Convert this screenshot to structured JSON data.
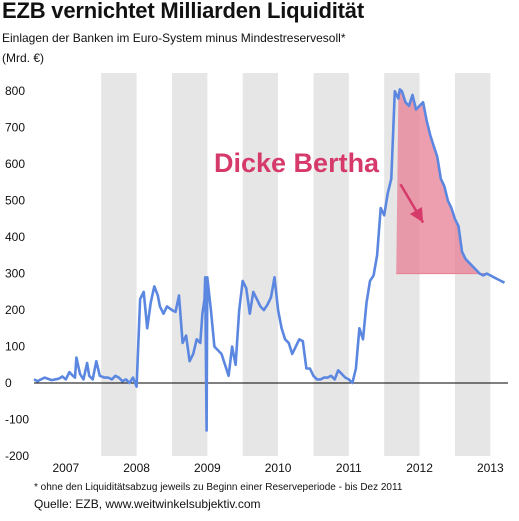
{
  "chart_data": {
    "type": "area",
    "title": "EZB vernichtet Milliarden Liquidität",
    "subtitle": "Einlagen der Banken im Euro-System minus Mindestreservesoll*",
    "unit": "(Mrd. €)",
    "ylim": [
      -200,
      850
    ],
    "xlim": [
      2006.55,
      2013.25
    ],
    "yticks": [
      -200,
      -100,
      0,
      100,
      200,
      300,
      400,
      500,
      600,
      700,
      800
    ],
    "ytick_labels": [
      "-200",
      "-100",
      "0",
      "100",
      "200",
      "300",
      "400",
      "500",
      "600",
      "700",
      "800"
    ],
    "year_labels": [
      "2007",
      "2008",
      "2009",
      "2010",
      "2011",
      "2012",
      "2013"
    ],
    "year_positions": [
      2007.0,
      2008.0,
      2009.0,
      2010.0,
      2011.0,
      2012.0,
      2013.0
    ],
    "shaded_bands": [
      [
        2007.5,
        2008.0
      ],
      [
        2008.5,
        2009.0
      ],
      [
        2009.5,
        2010.0
      ],
      [
        2010.5,
        2011.0
      ],
      [
        2011.5,
        2012.0
      ],
      [
        2012.5,
        2013.0
      ]
    ],
    "grid": false,
    "legend": "none",
    "colors": {
      "line": "#5b87e0",
      "area": "#e87f94",
      "band": "#e6e6e6",
      "annotation": "#d63a6a",
      "zero_line": "#000000"
    },
    "annotation": {
      "text": "Dicke Bertha",
      "arrow_from": [
        2011.73,
        545
      ],
      "arrow_to": [
        2012.05,
        440
      ]
    },
    "highlight": {
      "x_start": 2011.67,
      "x_end": 2012.92,
      "baseline": 300
    },
    "series": [
      {
        "x": [
          2006.55,
          2006.6,
          2006.7,
          2006.8,
          2006.9,
          2006.95,
          2007.0,
          2007.05,
          2007.1,
          2007.13,
          2007.15,
          2007.2,
          2007.25,
          2007.3,
          2007.33,
          2007.38,
          2007.43,
          2007.48,
          2007.55,
          2007.6,
          2007.65,
          2007.7,
          2007.75,
          2007.8,
          2007.85,
          2007.9,
          2007.95,
          2008.0,
          2008.05,
          2008.1,
          2008.15,
          2008.2,
          2008.25,
          2008.3,
          2008.33,
          2008.38,
          2008.43,
          2008.5,
          2008.55,
          2008.6,
          2008.65,
          2008.7,
          2008.75,
          2008.8,
          2008.85,
          2008.9,
          2008.93,
          2008.96,
          2008.97,
          2008.99,
          2009.0,
          2009.05,
          2009.1,
          2009.2,
          2009.3,
          2009.35,
          2009.4,
          2009.45,
          2009.5,
          2009.55,
          2009.6,
          2009.65,
          2009.7,
          2009.75,
          2009.8,
          2009.85,
          2009.9,
          2009.95,
          2010.0,
          2010.05,
          2010.1,
          2010.15,
          2010.2,
          2010.25,
          2010.3,
          2010.35,
          2010.4,
          2010.45,
          2010.5,
          2010.55,
          2010.6,
          2010.65,
          2010.7,
          2010.75,
          2010.8,
          2010.85,
          2010.9,
          2010.95,
          2011.0,
          2011.05,
          2011.1,
          2011.15,
          2011.2,
          2011.25,
          2011.3,
          2011.35,
          2011.4,
          2011.45,
          2011.5,
          2011.55,
          2011.6,
          2011.65,
          2011.7,
          2011.72,
          2011.75,
          2011.8,
          2011.85,
          2011.9,
          2011.95,
          2012.0,
          2012.05,
          2012.1,
          2012.15,
          2012.2,
          2012.25,
          2012.3,
          2012.35,
          2012.4,
          2012.45,
          2012.5,
          2012.55,
          2012.6,
          2012.65,
          2012.7,
          2012.75,
          2012.8,
          2012.85,
          2012.9,
          2012.95,
          2013.0,
          2013.05,
          2013.1,
          2013.15,
          2013.2
        ],
        "y": [
          10,
          5,
          15,
          8,
          12,
          18,
          10,
          30,
          20,
          15,
          70,
          25,
          10,
          55,
          20,
          10,
          60,
          20,
          15,
          15,
          10,
          20,
          15,
          5,
          10,
          0,
          15,
          -10,
          230,
          250,
          150,
          220,
          265,
          240,
          210,
          190,
          210,
          200,
          195,
          240,
          110,
          130,
          60,
          80,
          120,
          110,
          190,
          230,
          290,
          -130,
          290,
          200,
          100,
          80,
          20,
          100,
          50,
          200,
          280,
          260,
          190,
          250,
          230,
          210,
          200,
          215,
          235,
          290,
          200,
          150,
          120,
          110,
          80,
          100,
          120,
          115,
          40,
          40,
          20,
          10,
          10,
          15,
          15,
          20,
          10,
          35,
          25,
          15,
          10,
          0,
          40,
          150,
          120,
          220,
          280,
          295,
          350,
          480,
          460,
          520,
          560,
          800,
          780,
          805,
          800,
          770,
          760,
          790,
          750,
          760,
          770,
          720,
          680,
          650,
          620,
          560,
          540,
          500,
          480,
          450,
          430,
          360,
          340,
          330,
          320,
          310,
          300,
          295,
          300,
          295,
          290,
          285,
          280,
          275
        ]
      }
    ]
  },
  "footnote": "* ohne den Liquiditätsabzug jeweils zu Beginn einer Reserveperiode - bis Dez 2011",
  "source": "Quelle: EZB, www.weitwinkelsubjektiv.com"
}
